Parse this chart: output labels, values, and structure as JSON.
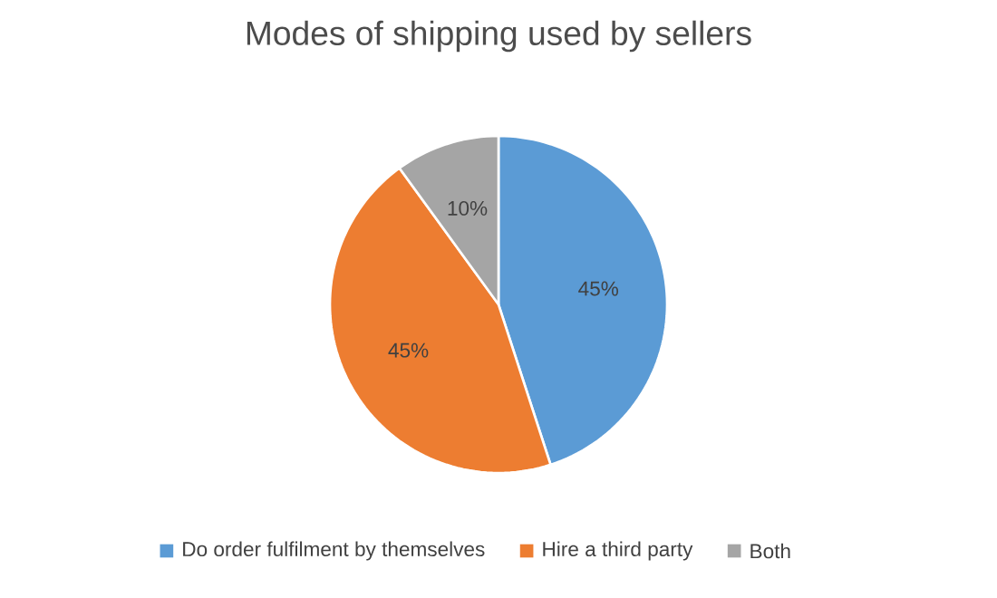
{
  "chart_data": {
    "type": "pie",
    "title": "Modes of shipping used by sellers",
    "categories": [
      "Do order fulfilment by themselves",
      "Hire a third party",
      "Both"
    ],
    "values": [
      45,
      45,
      10
    ],
    "colors": [
      "#5b9bd5",
      "#ed7d31",
      "#a5a5a5"
    ],
    "value_labels": [
      "45%",
      "45%",
      "10%"
    ],
    "legend": "bottom"
  }
}
